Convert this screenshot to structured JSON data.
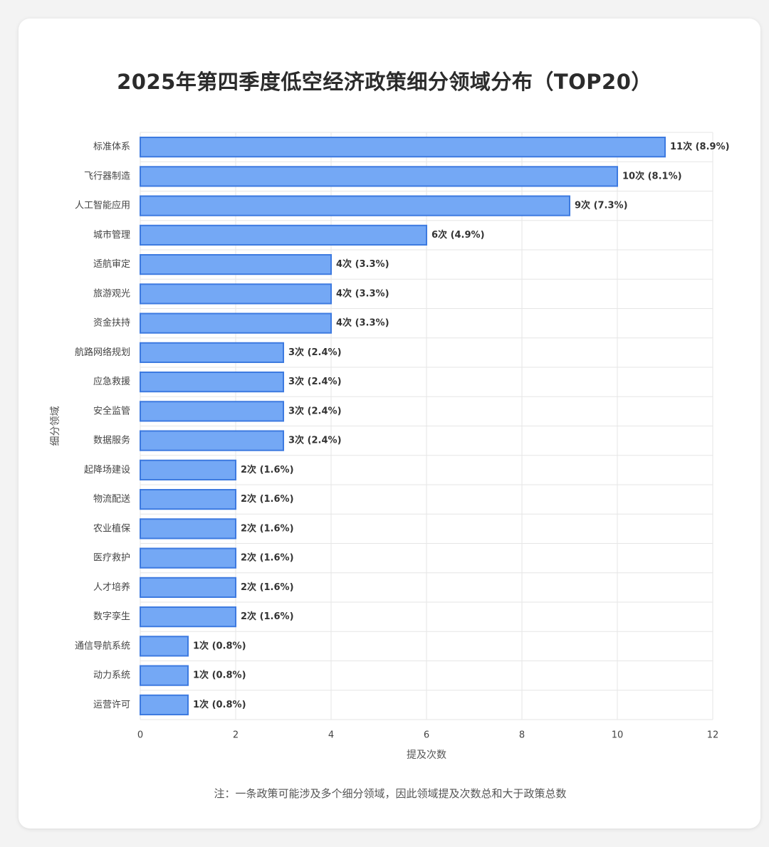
{
  "title": "2025年第四季度低空经济政策细分领域分布（TOP20）",
  "note": "注：一条政策可能涉及多个细分领域，因此领域提及次数总和大于政策总数",
  "colors": {
    "bar_fill": "#74a8f5",
    "bar_stroke": "#3d7ae0",
    "grid": "#e6e6e6"
  },
  "chart_data": {
    "type": "bar",
    "orientation": "horizontal",
    "title": "2025年第四季度低空经济政策细分领域分布（TOP20）",
    "xlabel": "提及次数",
    "ylabel": "细分领域",
    "xlim": [
      0,
      12
    ],
    "xticks": [
      0,
      2,
      4,
      6,
      8,
      10,
      12
    ],
    "grid": true,
    "categories": [
      "标准体系",
      "飞行器制造",
      "人工智能应用",
      "城市管理",
      "适航审定",
      "旅游观光",
      "资金扶持",
      "航路网络规划",
      "应急救援",
      "安全监管",
      "数据服务",
      "起降场建设",
      "物流配送",
      "农业植保",
      "医疗救护",
      "人才培养",
      "数字孪生",
      "通信导航系统",
      "动力系统",
      "运营许可"
    ],
    "values": [
      11,
      10,
      9,
      6,
      4,
      4,
      4,
      3,
      3,
      3,
      3,
      2,
      2,
      2,
      2,
      2,
      2,
      1,
      1,
      1
    ],
    "data_labels": [
      "11次 (8.9%)",
      "10次 (8.1%)",
      "9次 (7.3%)",
      "6次 (4.9%)",
      "4次 (3.3%)",
      "4次 (3.3%)",
      "4次 (3.3%)",
      "3次 (2.4%)",
      "3次 (2.4%)",
      "3次 (2.4%)",
      "3次 (2.4%)",
      "2次 (1.6%)",
      "2次 (1.6%)",
      "2次 (1.6%)",
      "2次 (1.6%)",
      "2次 (1.6%)",
      "2次 (1.6%)",
      "1次 (0.8%)",
      "1次 (0.8%)",
      "1次 (0.8%)"
    ]
  }
}
